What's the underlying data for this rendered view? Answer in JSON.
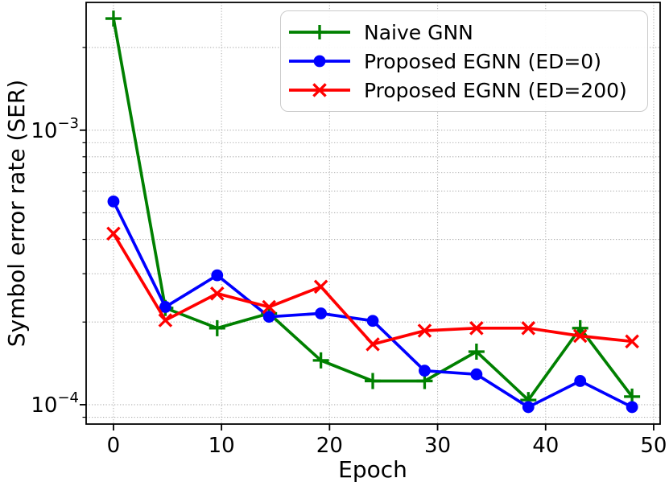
{
  "figure": {
    "background": "#ffffff"
  },
  "chart_data": {
    "type": "line",
    "title": "",
    "xlabel": "Epoch",
    "ylabel": "Symbol error rate (SER)",
    "x_scale": "linear",
    "y_scale": "log",
    "xlim": [
      -2.53,
      50.6
    ],
    "ylim": [
      8.5e-05,
      0.00292
    ],
    "x_ticks": [
      0,
      10,
      20,
      30,
      40,
      50
    ],
    "y_major_ticks": [
      {
        "value": 0.001,
        "base": "10",
        "exponent": "−3"
      },
      {
        "value": 0.0001,
        "base": "10",
        "exponent": "−4"
      }
    ],
    "y_minor_ticks": [
      9e-05,
      0.0002,
      0.0003,
      0.0004,
      0.0005,
      0.0006,
      0.0007,
      0.0008,
      0.0009,
      0.002
    ],
    "grid": {
      "visible": true,
      "style": "dotted",
      "color": "#b2b2b2"
    },
    "legend": {
      "position": "upper right"
    },
    "x": [
      0,
      4.8,
      9.6,
      14.4,
      19.2,
      24,
      28.8,
      33.6,
      38.4,
      43.2,
      48
    ],
    "series": [
      {
        "name": "Naive GNN",
        "color": "#008000",
        "marker": "plus",
        "values": [
          0.00255,
          0.000225,
          0.00019,
          0.000215,
          0.000145,
          0.000122,
          0.000122,
          0.000156,
          0.000104,
          0.00019,
          0.000107
        ]
      },
      {
        "name": "Proposed EGNN (ED=0)",
        "color": "#0000ff",
        "marker": "circle",
        "values": [
          0.00055,
          0.000227,
          0.000296,
          0.000209,
          0.000215,
          0.000202,
          0.000133,
          0.000129,
          9.8e-05,
          0.000122,
          9.8e-05
        ]
      },
      {
        "name": "Proposed EGNN (ED=200)",
        "color": "#ff0000",
        "marker": "x",
        "values": [
          0.00042,
          0.000203,
          0.000254,
          0.000227,
          0.000269,
          0.000166,
          0.000186,
          0.00019,
          0.00019,
          0.000178,
          0.00017
        ]
      }
    ]
  }
}
